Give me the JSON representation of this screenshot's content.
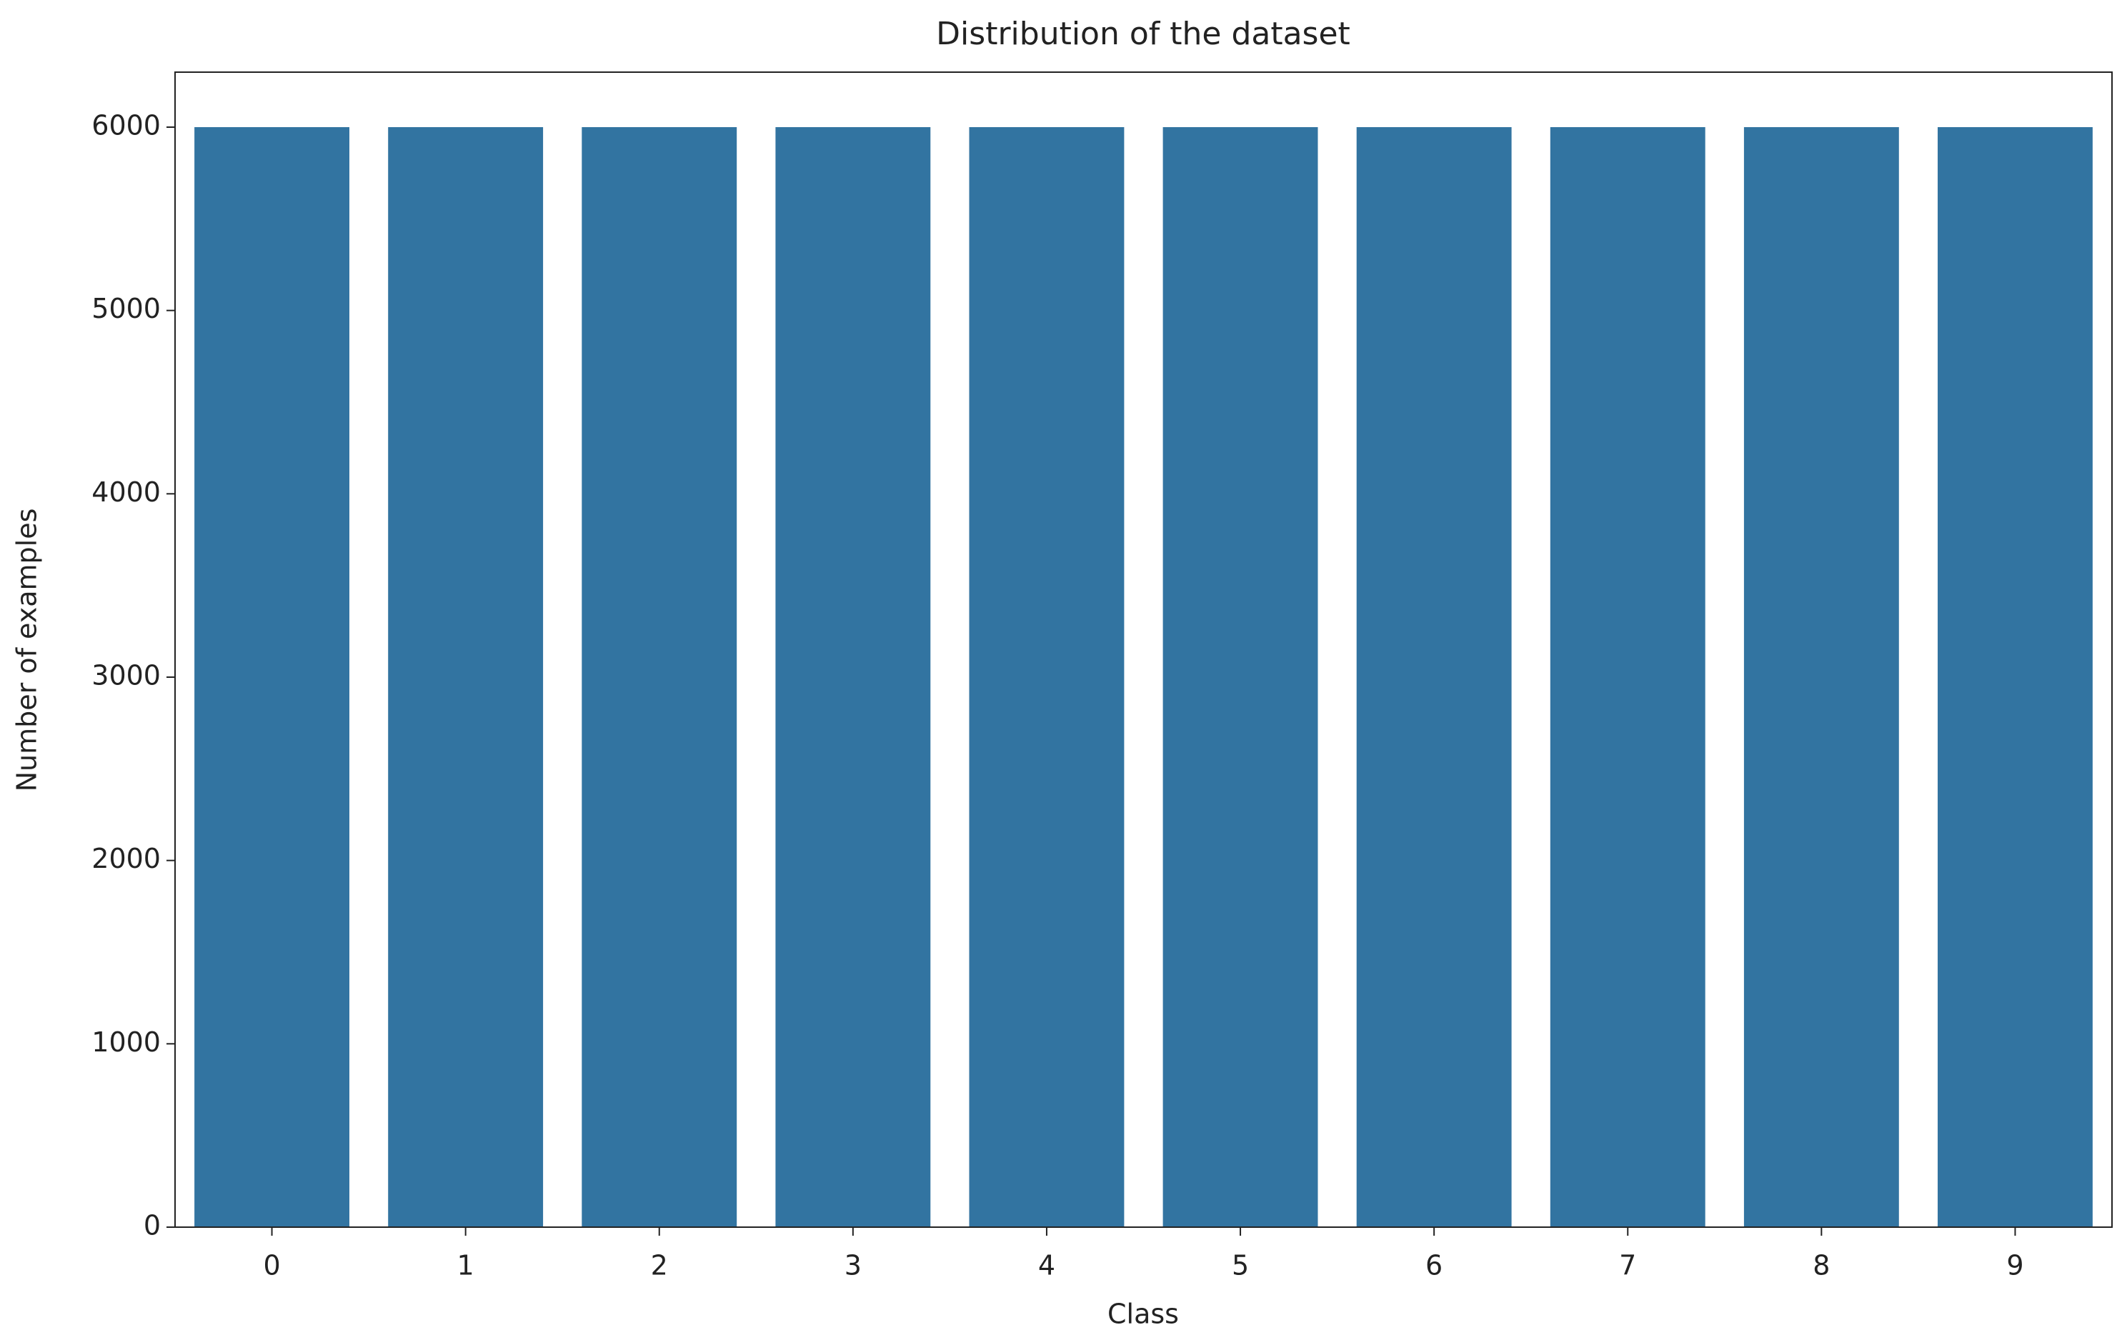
{
  "chart_data": {
    "type": "bar",
    "title": "Distribution of the dataset",
    "x_label": "Class",
    "y_label": "Number of examples",
    "categories": [
      "0",
      "1",
      "2",
      "3",
      "4",
      "5",
      "6",
      "7",
      "8",
      "9"
    ],
    "values": [
      6000,
      6000,
      6000,
      6000,
      6000,
      6000,
      6000,
      6000,
      6000,
      6000
    ],
    "color": "#3274a1",
    "ylim": [
      0,
      6300
    ],
    "yticks": [
      0,
      1000,
      2000,
      3000,
      4000,
      5000,
      6000
    ],
    "grid": false
  }
}
